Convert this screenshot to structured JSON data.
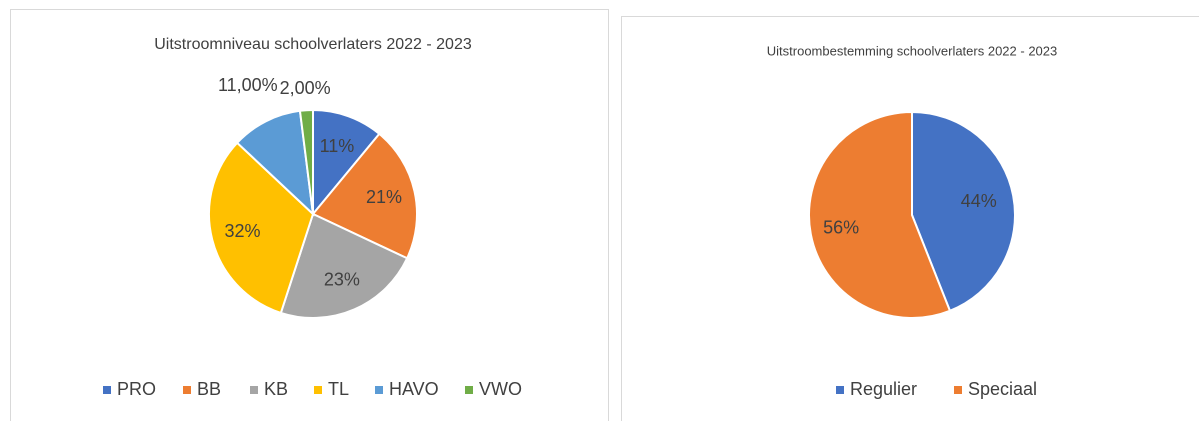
{
  "chart_data": [
    {
      "type": "pie",
      "title": "Uitstroomniveau schoolverlaters 2022 - 2023",
      "categories": [
        "PRO",
        "BB",
        "KB",
        "TL",
        "HAVO",
        "VWO"
      ],
      "values": [
        11,
        21,
        23,
        32,
        11,
        2
      ],
      "value_labels": [
        "11%",
        "21%",
        "23%",
        "32%",
        "11,00%",
        "2,00%"
      ],
      "colors": [
        "#4472c4",
        "#ed7d31",
        "#a5a5a5",
        "#ffc000",
        "#5b9bd5",
        "#70ad47"
      ],
      "legend": "bottom"
    },
    {
      "type": "pie",
      "title": "Uitstroombestemming schoolverlaters 2022 - 2023",
      "categories": [
        "Regulier",
        "Speciaal"
      ],
      "values": [
        44,
        56
      ],
      "value_labels": [
        "44%",
        "56%"
      ],
      "colors": [
        "#4472c4",
        "#ed7d31"
      ],
      "legend": "bottom"
    }
  ]
}
